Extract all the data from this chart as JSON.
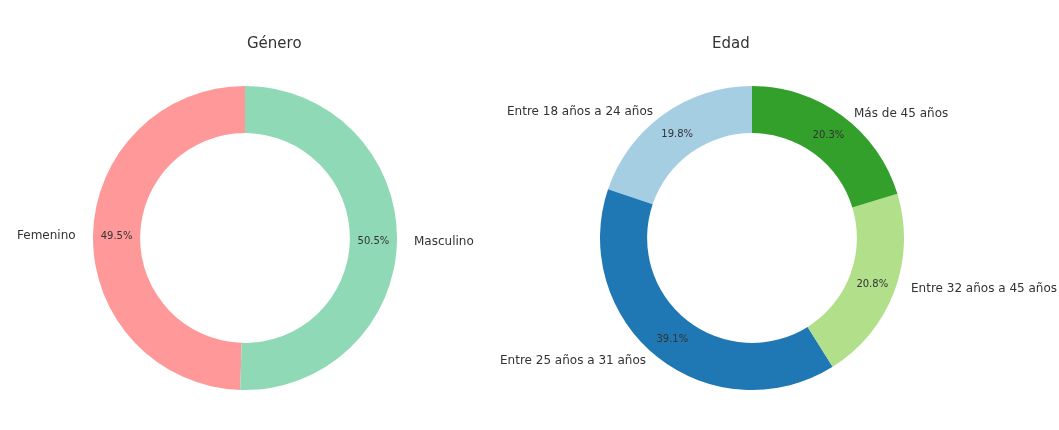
{
  "chart_data": [
    {
      "type": "donut",
      "title": "Género",
      "categories": [
        "Femenino",
        "Masculino"
      ],
      "values": [
        49.5,
        50.5
      ],
      "value_labels": [
        "49.5%",
        "50.5%"
      ],
      "colors": [
        "#ff9999",
        "#8fd9b6"
      ],
      "legend": false
    },
    {
      "type": "donut",
      "title": "Edad",
      "categories": [
        "Entre 18 años a 24 años",
        "Entre 25 años a 31 años",
        "Entre 32 años a 45 años",
        "Más de 45 años"
      ],
      "values": [
        19.8,
        39.1,
        20.8,
        20.3
      ],
      "value_labels": [
        "19.8%",
        "39.1%",
        "20.8%",
        "20.3%"
      ],
      "colors": [
        "#a6cee3",
        "#1f78b4",
        "#b2df8a",
        "#33a02c"
      ],
      "legend": false
    }
  ]
}
